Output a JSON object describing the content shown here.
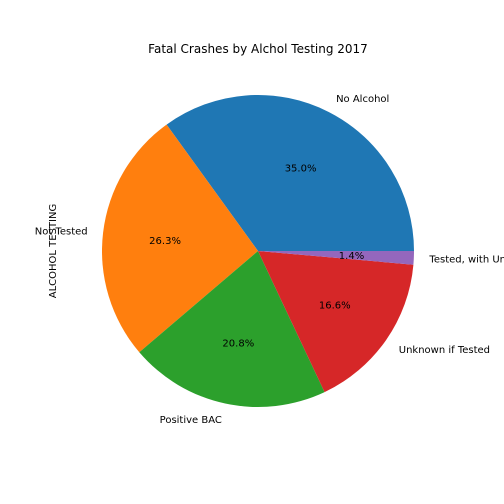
{
  "chart_data": {
    "type": "pie",
    "title": "Fatal Crashes by Alchol Testing 2017",
    "ylabel": "ALCOHOL TESTING",
    "start_angle_deg": 0,
    "direction": "counterclockwise",
    "slices": [
      {
        "label": "No Alcohol",
        "value": 35.0,
        "pct_label": "35.0%",
        "color": "#1f77b4"
      },
      {
        "label": "Not Tested",
        "value": 26.3,
        "pct_label": "26.3%",
        "color": "#ff7f0e"
      },
      {
        "label": "Positive BAC",
        "value": 20.8,
        "pct_label": "20.8%",
        "color": "#2ca02c"
      },
      {
        "label": "Unknown if Tested",
        "value": 16.6,
        "pct_label": "16.6%",
        "color": "#d62728"
      },
      {
        "label": "Tested, with Unknown Results",
        "value": 1.4,
        "pct_label": "1.4%",
        "color": "#9467bd"
      }
    ]
  }
}
